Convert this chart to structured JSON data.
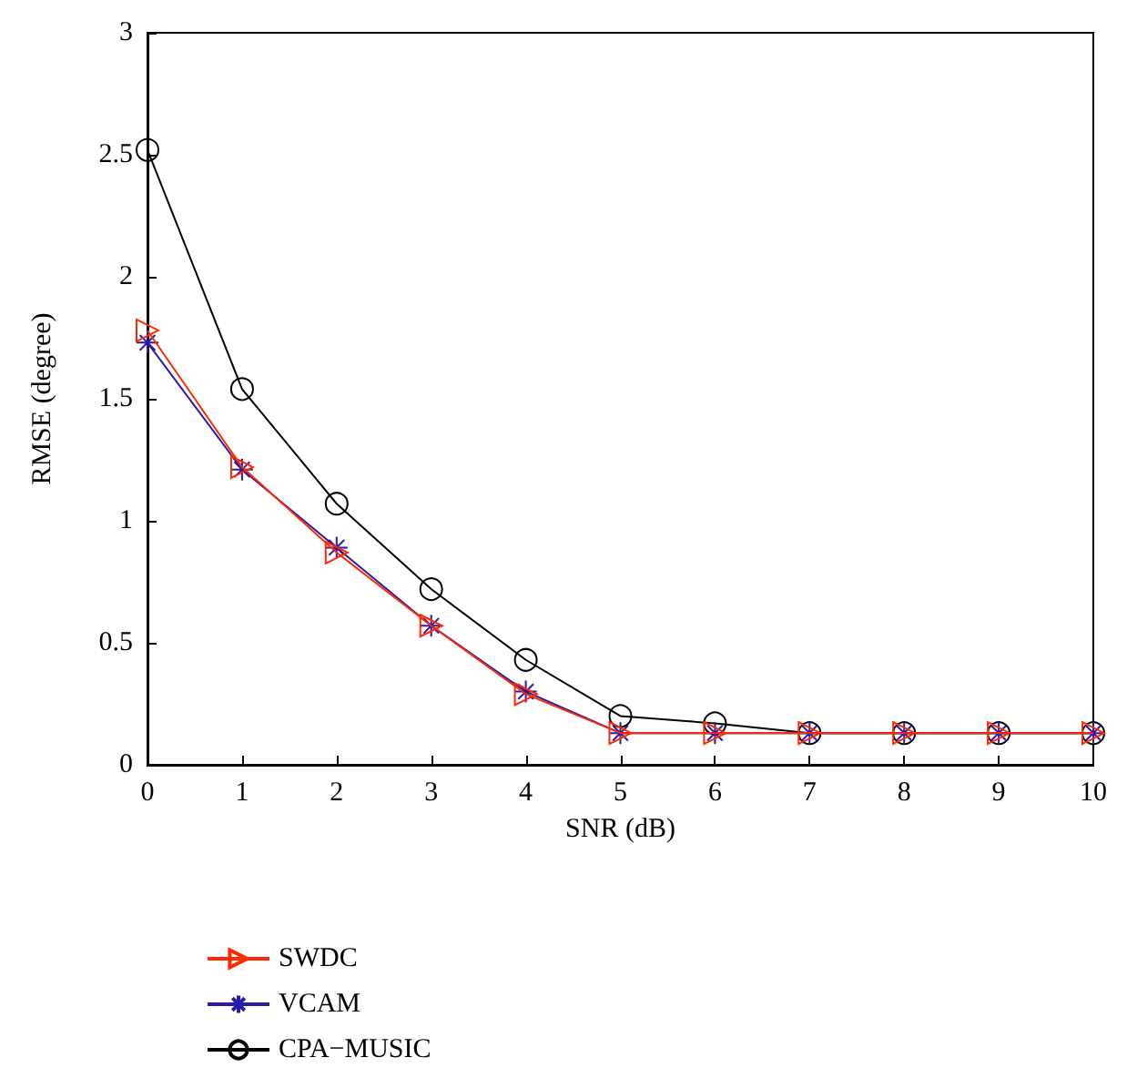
{
  "chart_data": {
    "type": "line",
    "xlabel": "SNR (dB)",
    "ylabel": "RMSE (degree)",
    "x": [
      0,
      1,
      2,
      3,
      4,
      5,
      6,
      7,
      8,
      9,
      10
    ],
    "xlim": [
      0,
      10
    ],
    "xticks": [
      0,
      1,
      2,
      3,
      4,
      5,
      6,
      7,
      8,
      9,
      10
    ],
    "ylim": [
      0,
      3
    ],
    "yticks": [
      0,
      0.5,
      1,
      1.5,
      2,
      2.5,
      3
    ],
    "grid": false,
    "legend": "bottom left",
    "line_style": "solid",
    "series": [
      {
        "name": "SWDC",
        "color": "#ff2a00",
        "marker": "triangle",
        "values": [
          1.78,
          1.22,
          0.87,
          0.57,
          0.29,
          0.13,
          0.13,
          0.13,
          0.13,
          0.13,
          0.13
        ]
      },
      {
        "name": "VCAM",
        "color": "#2a1aa8",
        "marker": "cross",
        "values": [
          1.73,
          1.21,
          0.89,
          0.57,
          0.3,
          0.13,
          0.13,
          0.13,
          0.13,
          0.13,
          0.13
        ]
      },
      {
        "name": "CPA−MUSIC",
        "color": "#000000",
        "marker": "circle",
        "values": [
          2.52,
          1.54,
          1.07,
          0.72,
          0.43,
          0.2,
          0.17,
          0.13,
          0.13,
          0.13,
          0.13
        ]
      }
    ]
  }
}
